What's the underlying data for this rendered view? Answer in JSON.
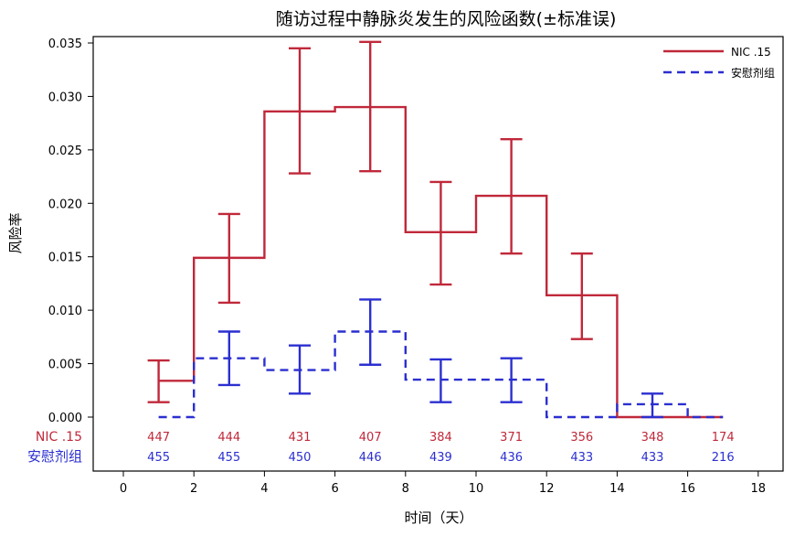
{
  "chart_data": {
    "type": "line",
    "title": "随访过程中静脉炎发生的风险函数(±标准误)",
    "xlabel": "时间（天）",
    "ylabel": "风险率",
    "xlim": [
      0,
      18
    ],
    "ylim": [
      0,
      0.035
    ],
    "xticks": [
      0,
      2,
      4,
      6,
      8,
      10,
      12,
      14,
      16,
      18
    ],
    "yticks": [
      "0.000",
      "0.005",
      "0.010",
      "0.015",
      "0.020",
      "0.025",
      "0.030",
      "0.035"
    ],
    "grid": false,
    "legend_position": "top-right",
    "step_intervals": [
      [
        1,
        2
      ],
      [
        2,
        4
      ],
      [
        4,
        6
      ],
      [
        6,
        8
      ],
      [
        8,
        10
      ],
      [
        10,
        12
      ],
      [
        12,
        14
      ],
      [
        14,
        16
      ],
      [
        16,
        17
      ]
    ],
    "series": [
      {
        "name": "NIC .15",
        "color": "#c0283a",
        "style": "solid",
        "values": [
          0.0034,
          0.0149,
          0.0286,
          0.029,
          0.0173,
          0.0207,
          0.0114,
          0.0,
          0.0
        ],
        "error_bars": [
          {
            "x": 1,
            "low": 0.0014,
            "high": 0.0053
          },
          {
            "x": 3,
            "low": 0.0107,
            "high": 0.019
          },
          {
            "x": 5,
            "low": 0.0228,
            "high": 0.0345
          },
          {
            "x": 7,
            "low": 0.023,
            "high": 0.0351
          },
          {
            "x": 9,
            "low": 0.0124,
            "high": 0.022
          },
          {
            "x": 11,
            "low": 0.0153,
            "high": 0.026
          },
          {
            "x": 13,
            "low": 0.0073,
            "high": 0.0153
          }
        ],
        "at_risk_label": "NIC .15",
        "at_risk": [
          "447",
          "444",
          "431",
          "407",
          "384",
          "371",
          "356",
          "348",
          "174"
        ]
      },
      {
        "name": "安慰剂组",
        "color": "#2b2fd0",
        "style": "dashed",
        "values": [
          0.0,
          0.0055,
          0.0044,
          0.008,
          0.0035,
          0.0035,
          0.0,
          0.0012,
          0.0
        ],
        "error_bars": [
          {
            "x": 3,
            "low": 0.003,
            "high": 0.008
          },
          {
            "x": 5,
            "low": 0.0022,
            "high": 0.0067
          },
          {
            "x": 7,
            "low": 0.0049,
            "high": 0.011
          },
          {
            "x": 9,
            "low": 0.0014,
            "high": 0.0054
          },
          {
            "x": 11,
            "low": 0.0014,
            "high": 0.0055
          },
          {
            "x": 15,
            "low": 0.0,
            "high": 0.0022
          }
        ],
        "at_risk_label": "安慰剂组",
        "at_risk": [
          "455",
          "455",
          "450",
          "446",
          "439",
          "436",
          "433",
          "433",
          "216"
        ]
      }
    ],
    "at_risk_x": [
      1,
      3,
      5,
      7,
      9,
      11,
      13,
      15,
      17
    ]
  }
}
